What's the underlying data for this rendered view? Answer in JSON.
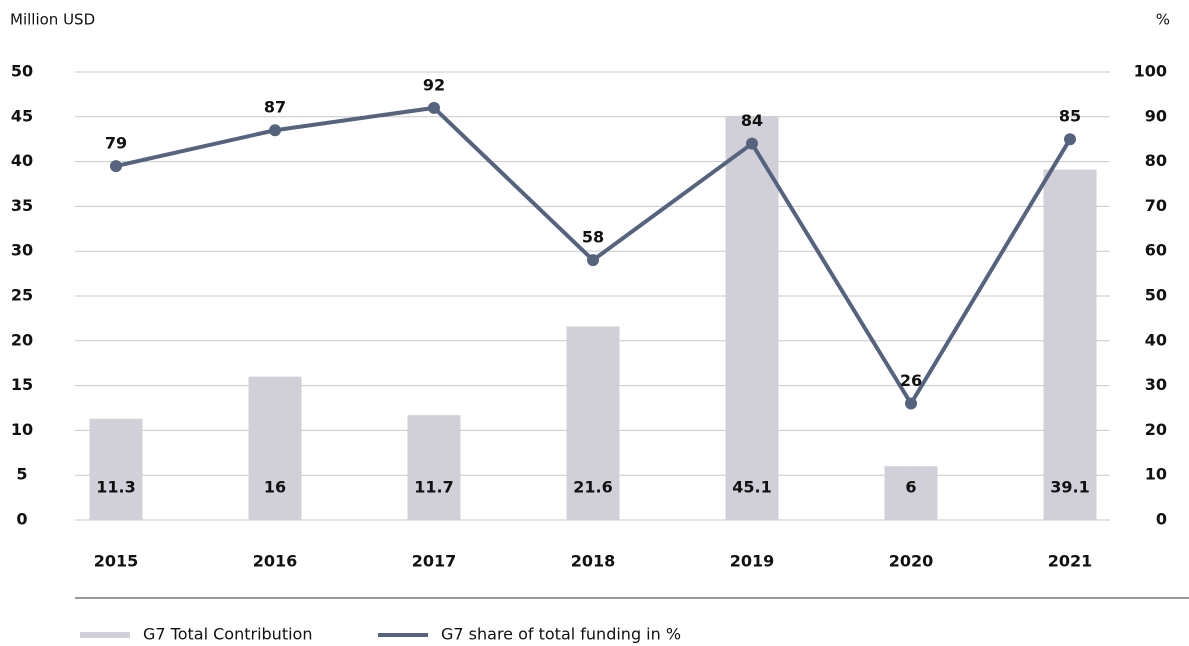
{
  "chart_data": {
    "type": "bar-line",
    "y_label": "Million USD",
    "y2_label": "%",
    "categories": [
      "2015",
      "2016",
      "2017",
      "2018",
      "2019",
      "2020",
      "2021"
    ],
    "series": [
      {
        "name": "G7 Total Contribution",
        "type": "bar",
        "color": "#d1cfd7",
        "values": [
          11.3,
          16,
          11.7,
          21.6,
          45.1,
          6,
          39.1
        ]
      },
      {
        "name": "G7 share of total funding in %",
        "type": "line",
        "axis": "y2",
        "color": "#56637f",
        "values": [
          79,
          87,
          92,
          58,
          84,
          26,
          85
        ]
      }
    ],
    "ylim": [
      0,
      50
    ],
    "yticks": [
      0,
      5,
      10,
      15,
      20,
      25,
      30,
      35,
      40,
      45,
      50
    ],
    "y2lim": [
      0,
      100
    ],
    "y2ticks": [
      0,
      10,
      20,
      30,
      40,
      50,
      60,
      70,
      80,
      90,
      100
    ],
    "grid": true,
    "legend": "bottom"
  }
}
